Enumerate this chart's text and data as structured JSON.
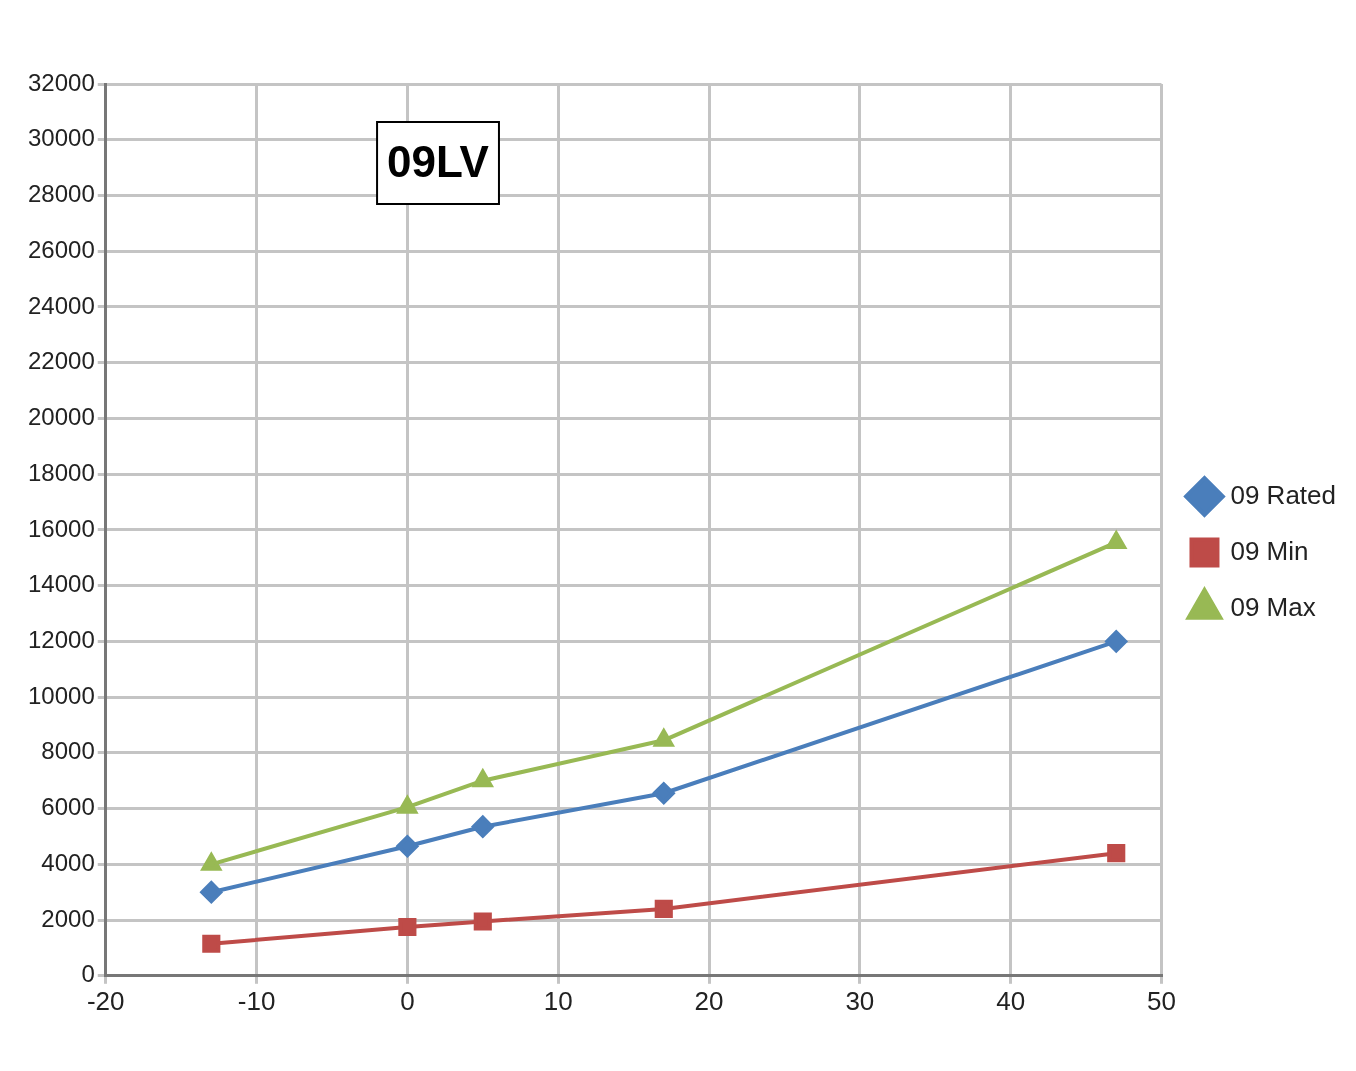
{
  "chart_data": {
    "type": "line",
    "title": "09LV",
    "xlim": [
      -20,
      50
    ],
    "xticks": [
      -20,
      -10,
      0,
      10,
      20,
      30,
      40,
      50
    ],
    "ylim": [
      0,
      32000
    ],
    "yticks": [
      0,
      2000,
      4000,
      6000,
      8000,
      10000,
      12000,
      14000,
      16000,
      18000,
      20000,
      22000,
      24000,
      26000,
      28000,
      30000,
      32000
    ],
    "x": [
      -13,
      0,
      5,
      17,
      47
    ],
    "grid": true,
    "legend": "right",
    "series": [
      {
        "name": "09 Rated",
        "color": "#4a7ebb",
        "marker": "diamond",
        "values": [
          3000,
          4650,
          5350,
          6550,
          12000
        ]
      },
      {
        "name": "09 Min",
        "color": "#be4b48",
        "marker": "square",
        "values": [
          1150,
          1750,
          1950,
          2400,
          4400
        ]
      },
      {
        "name": "09 Max",
        "color": "#98b954",
        "marker": "triangle",
        "values": [
          4000,
          6050,
          7000,
          8450,
          15550
        ]
      }
    ]
  }
}
